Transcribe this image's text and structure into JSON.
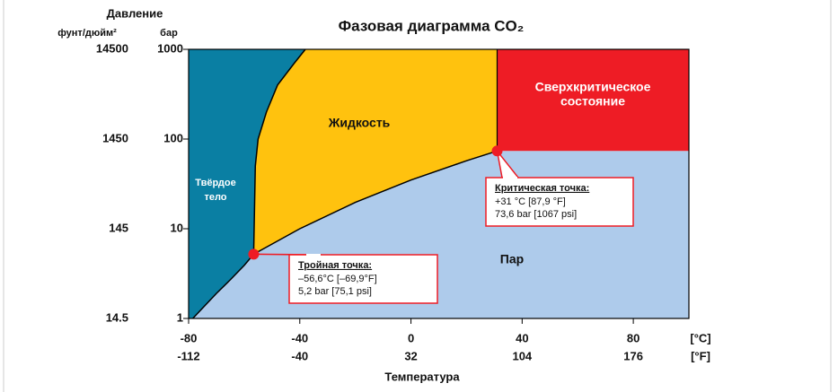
{
  "chart_data": {
    "type": "phase_diagram",
    "title": "Фазовая диаграмма CO₂",
    "y_axis_title": "Давление",
    "y_unit_left": "фунт/дюйм²",
    "y_unit_right": "бар",
    "x_axis_title": "Температура",
    "x_unit": "[°C]",
    "x2_unit": "[°F]",
    "xlim": [
      -80,
      100
    ],
    "ylim": [
      1,
      1000
    ],
    "log_y": true,
    "xticks": [
      -80,
      -40,
      0,
      40,
      80
    ],
    "x2ticks": [
      {
        "value": -80,
        "label": "-112"
      },
      {
        "value": -40,
        "label": "-40"
      },
      {
        "value": 0,
        "label": "32"
      },
      {
        "value": 40,
        "label": "104"
      },
      {
        "value": 80,
        "label": "176"
      }
    ],
    "yticks": [
      1,
      10,
      100,
      1000
    ],
    "y2ticks": [
      {
        "value": 1,
        "label": "14.5"
      },
      {
        "value": 10,
        "label": "145"
      },
      {
        "value": 100,
        "label": "1450"
      },
      {
        "value": 1000,
        "label": "14500"
      }
    ],
    "curves": [
      {
        "name": "sublimation",
        "x": [
          -78.5,
          -70,
          -65,
          -60,
          -56.6
        ],
        "values": [
          1,
          1.9,
          2.7,
          3.9,
          5.2
        ]
      },
      {
        "name": "melting",
        "x": [
          -56.6,
          -56,
          -55,
          -52,
          -48,
          -42,
          -38
        ],
        "values": [
          5.2,
          50,
          100,
          200,
          400,
          700,
          1000
        ]
      },
      {
        "name": "vaporization",
        "x": [
          -56.6,
          -40,
          -20,
          0,
          20,
          31
        ],
        "values": [
          5.2,
          10,
          19.7,
          34.9,
          57.3,
          73.6
        ]
      }
    ],
    "regions": [
      {
        "label": [
          "Твёрдое",
          "тело"
        ],
        "color": "#0a7fa3"
      },
      {
        "label": [
          "Жидкость"
        ],
        "color": "#ffc20e"
      },
      {
        "label": [
          "Сверхкритическое",
          "состояние"
        ],
        "color": "#ee1c25"
      },
      {
        "label": [
          "Пар"
        ],
        "color": "#aecbeb"
      }
    ],
    "point_color": "#ee1c25",
    "points": [
      {
        "x": -56.6,
        "y": 5.2,
        "title": "Тройная точка:",
        "lines": [
          "–56,6°C [–69,9°F]",
          "5,2 bar [75,1 psi]"
        ]
      },
      {
        "x": 31,
        "y": 73.6,
        "title": "Критическая точка:",
        "lines": [
          "+31 °C  [87,9 °F]",
          "73,6 bar [1067 psi]"
        ]
      }
    ]
  }
}
